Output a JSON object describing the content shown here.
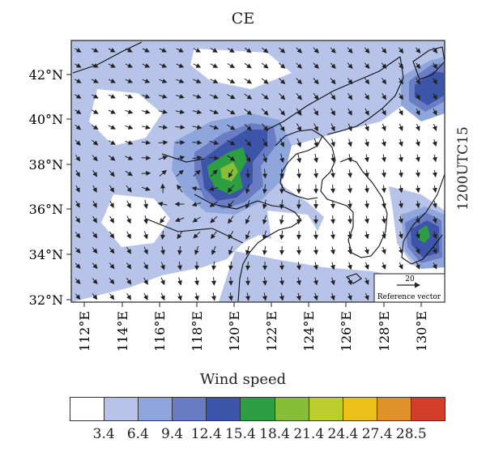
{
  "title": "CE",
  "time_label": "1200UTC15",
  "map": {
    "lat_labels": [
      "32°N",
      "34°N",
      "36°N",
      "38°N",
      "40°N",
      "42°N"
    ],
    "lon_labels": [
      "112°E",
      "114°E",
      "116°E",
      "118°E",
      "120°E",
      "122°E",
      "124°E",
      "126°E",
      "128°E",
      "130°E"
    ],
    "reference_vector": {
      "value": "20",
      "label": "Reference vector"
    }
  },
  "legend": {
    "title": "Wind speed",
    "colors": [
      "#ffffff",
      "#b7c3e8",
      "#8ea6dc",
      "#6a7cc4",
      "#3d55a8",
      "#2e9e43",
      "#86be3a",
      "#bccd2e",
      "#ecc21a",
      "#e0922a",
      "#d23e2a"
    ],
    "tick_labels": [
      "3.4",
      "6.4",
      "9.4",
      "12.4",
      "15.4",
      "18.4",
      "21.4",
      "24.4",
      "27.4",
      "28.5"
    ]
  }
}
